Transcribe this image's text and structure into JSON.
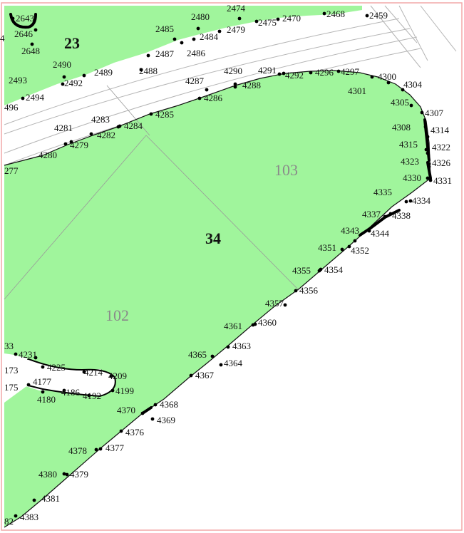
{
  "map": {
    "colors": {
      "parcel_fill": "#a0f59c",
      "boundary": "#111111",
      "road_line": "#b5b5b5",
      "frame": "#f2a9a9",
      "sub_parcel_text": "#8a8a8a"
    },
    "parcel_labels": [
      "23",
      "34"
    ],
    "sub_parcel_labels": [
      "103",
      "102"
    ],
    "point_labels": [
      "2643",
      "4",
      "2646",
      "2648",
      "2474",
      "2480",
      "2485",
      "2479",
      "2484",
      "2475",
      "2470",
      "2468",
      "2459",
      "2487",
      "2486",
      "2488",
      "2490",
      "2489",
      "2492",
      "2493",
      "2494",
      "496",
      "4287",
      "4290",
      "4291",
      "4288",
      "4286",
      "4292",
      "4296",
      "4297",
      "4300",
      "4301",
      "4304",
      "4305",
      "4307",
      "4308",
      "4314",
      "4315",
      "4322",
      "4323",
      "4326",
      "4330",
      "4331",
      "4283",
      "4281",
      "4282",
      "4285",
      "4284",
      "4279",
      "4280",
      "277",
      "4335",
      "4334",
      "4337",
      "4338",
      "4343",
      "4344",
      "4351",
      "4352",
      "4355",
      "4354",
      "4356",
      "4357",
      "4361",
      "4360",
      "4363",
      "4365",
      "4364",
      "4367",
      "33",
      "4231",
      "4225",
      "4214",
      "4209",
      "173",
      "4177",
      "175",
      "4186",
      "4192",
      "4199",
      "4180",
      "4370",
      "4368",
      "4369",
      "4376",
      "4378",
      "4377",
      "4380",
      "4379",
      "4381",
      "82",
      "4383"
    ]
  }
}
